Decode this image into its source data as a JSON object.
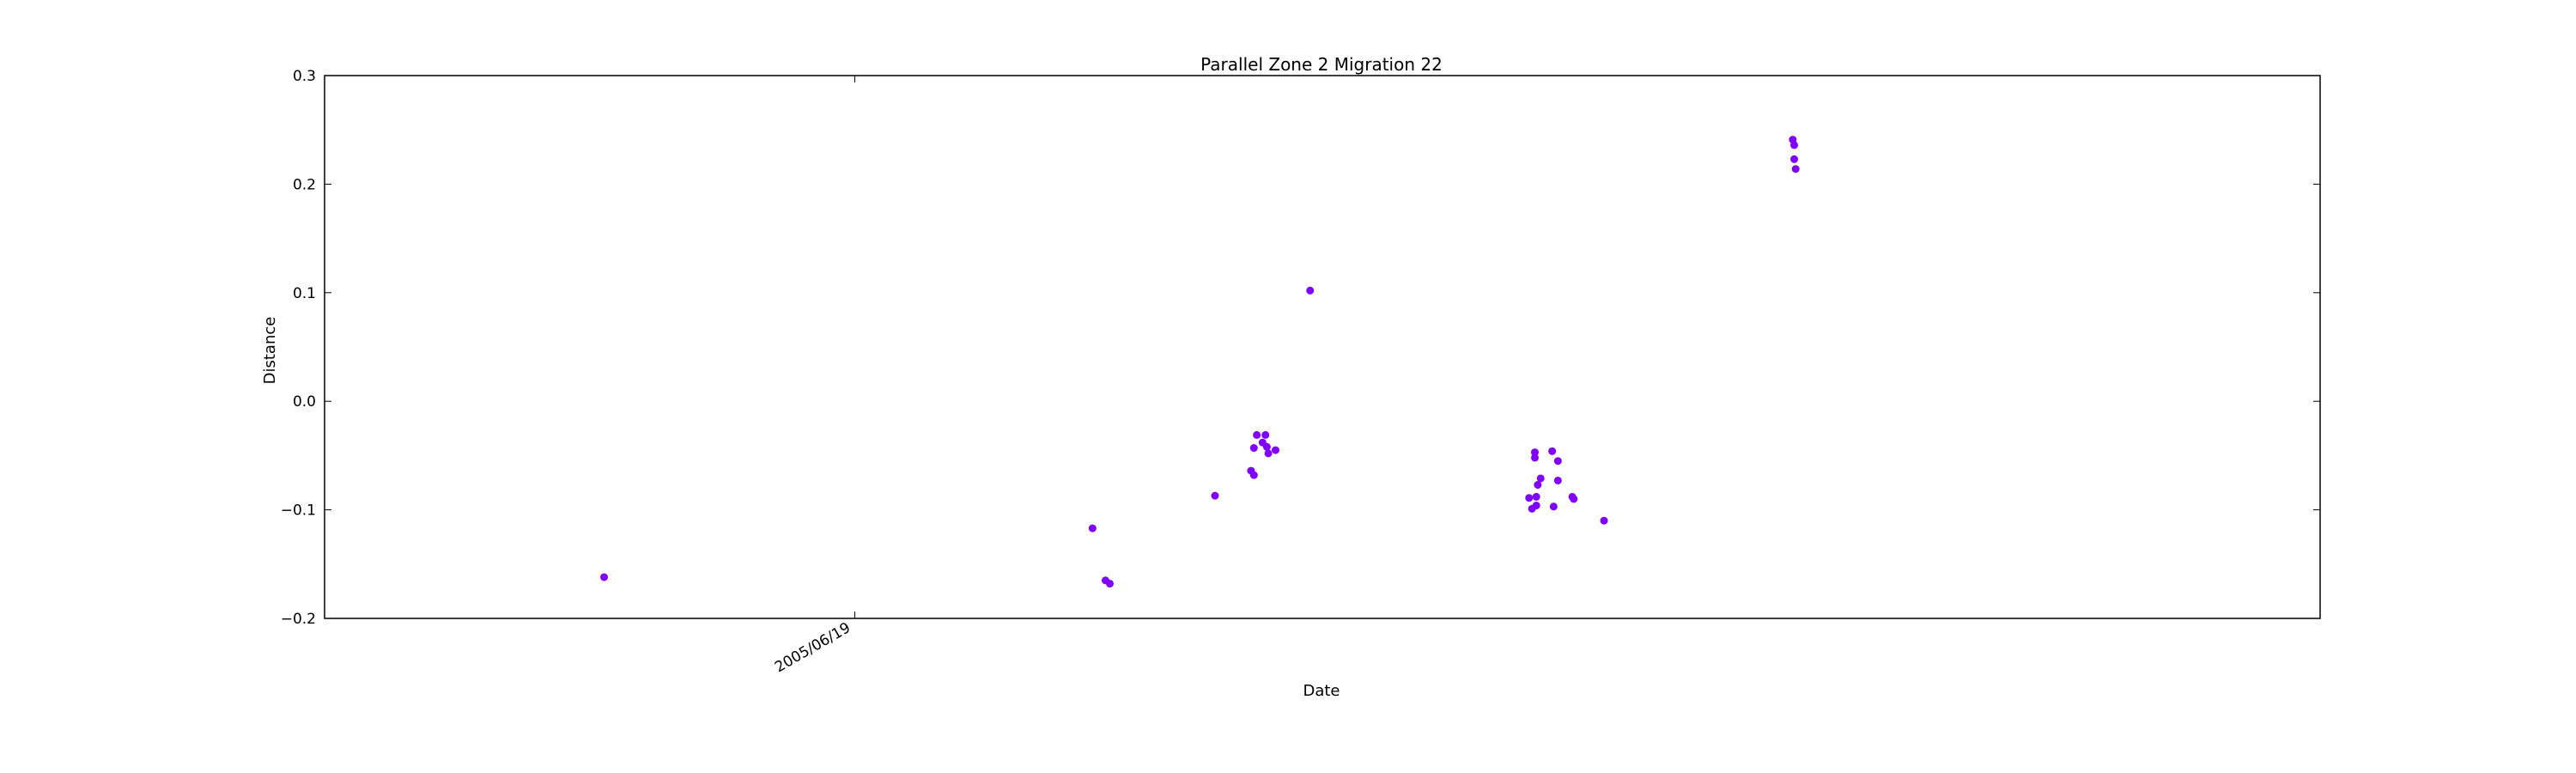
{
  "chart_data": {
    "type": "scatter",
    "title": "Parallel Zone 2 Migration 22",
    "xlabel": "Date",
    "ylabel": "Distance",
    "ylim": [
      -0.2,
      0.3
    ],
    "yticks": [
      "0.3",
      "0.2",
      "0.1",
      "0.0",
      "−0.1",
      "−0.2"
    ],
    "xtick_label": "2005/06/19",
    "grid": false,
    "marker_color": "#8000ff",
    "series": [
      {
        "points": [
          {
            "x": "2004-12-27",
            "y": -0.162
          },
          {
            "x": "2005-12-01",
            "y": -0.117
          },
          {
            "x": "2005-12-10",
            "y": -0.165
          },
          {
            "x": "2005-12-13",
            "y": -0.168
          },
          {
            "x": "2006-02-24",
            "y": -0.087
          },
          {
            "x": "2006-03-21",
            "y": -0.064
          },
          {
            "x": "2006-03-23",
            "y": -0.068
          },
          {
            "x": "2006-03-23",
            "y": -0.043
          },
          {
            "x": "2006-03-25",
            "y": -0.031
          },
          {
            "x": "2006-03-29",
            "y": -0.038
          },
          {
            "x": "2006-03-31",
            "y": -0.031
          },
          {
            "x": "2006-04-01",
            "y": -0.042
          },
          {
            "x": "2006-04-02",
            "y": -0.048
          },
          {
            "x": "2006-04-07",
            "y": -0.045
          },
          {
            "x": "2006-05-01",
            "y": 0.102
          },
          {
            "x": "2006-09-30",
            "y": -0.089
          },
          {
            "x": "2006-10-02",
            "y": -0.099
          },
          {
            "x": "2006-10-04",
            "y": -0.047
          },
          {
            "x": "2006-10-04",
            "y": -0.052
          },
          {
            "x": "2006-10-05",
            "y": -0.096
          },
          {
            "x": "2006-10-05",
            "y": -0.088
          },
          {
            "x": "2006-10-06",
            "y": -0.077
          },
          {
            "x": "2006-10-08",
            "y": -0.071
          },
          {
            "x": "2006-10-16",
            "y": -0.046
          },
          {
            "x": "2006-10-17",
            "y": -0.097
          },
          {
            "x": "2006-10-20",
            "y": -0.073
          },
          {
            "x": "2006-10-20",
            "y": -0.055
          },
          {
            "x": "2006-10-30",
            "y": -0.088
          },
          {
            "x": "2006-10-31",
            "y": -0.09
          },
          {
            "x": "2006-11-21",
            "y": -0.11
          },
          {
            "x": "2007-04-01",
            "y": 0.241
          },
          {
            "x": "2007-04-02",
            "y": 0.236
          },
          {
            "x": "2007-04-02",
            "y": 0.223
          },
          {
            "x": "2007-04-03",
            "y": 0.214
          }
        ]
      }
    ]
  }
}
